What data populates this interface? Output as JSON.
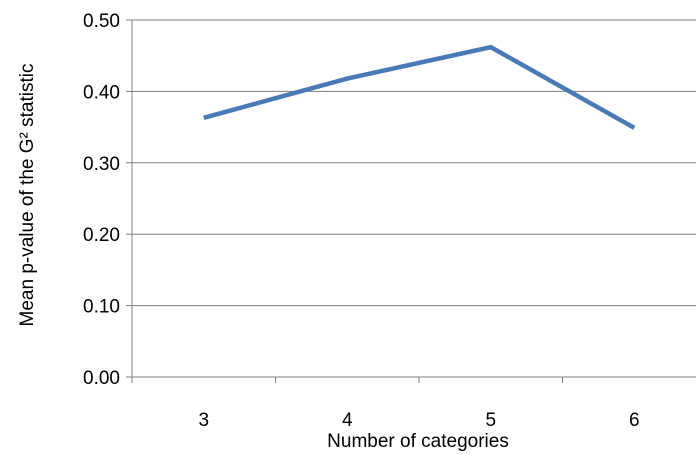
{
  "chart_data": {
    "type": "line",
    "title": "",
    "xlabel": "Number of categories",
    "ylabel": "Mean p-value of the G² statistic",
    "categories": [
      "3",
      "4",
      "5",
      "6"
    ],
    "series": [
      {
        "values": [
          0.363,
          0.418,
          0.462,
          0.349
        ],
        "color": "#4a7ab5"
      }
    ],
    "ylim": [
      0,
      0.5
    ],
    "yticks": [
      "0.00",
      "0.10",
      "0.20",
      "0.30",
      "0.40",
      "0.50"
    ],
    "ytick_values": [
      0,
      0.1,
      0.2,
      0.3,
      0.4,
      0.5
    ],
    "grid": true,
    "legend": "none"
  }
}
